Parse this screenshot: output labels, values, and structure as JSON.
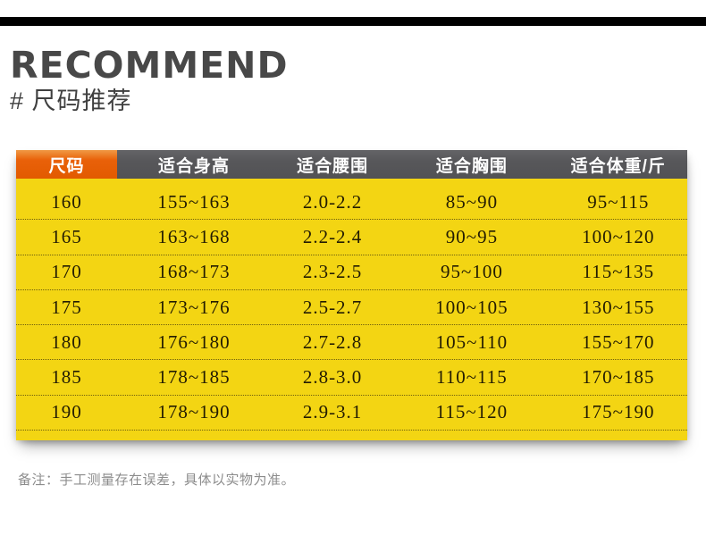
{
  "header": {
    "title": "RECOMMEND",
    "subtitle": "# 尺码推荐"
  },
  "table": {
    "columns": [
      {
        "label": "尺码",
        "highlight": true
      },
      {
        "label": "适合身高",
        "highlight": false
      },
      {
        "label": "适合腰围",
        "highlight": false
      },
      {
        "label": "适合胸围",
        "highlight": false
      },
      {
        "label": "适合体重/斤",
        "highlight": false
      }
    ],
    "rows": [
      [
        "160",
        "155~163",
        "2.0-2.2",
        "85~90",
        "95~115"
      ],
      [
        "165",
        "163~168",
        "2.2-2.4",
        "90~95",
        "100~120"
      ],
      [
        "170",
        "168~173",
        "2.3-2.5",
        "95~100",
        "115~135"
      ],
      [
        "175",
        "173~176",
        "2.5-2.7",
        "100~105",
        "130~155"
      ],
      [
        "180",
        "176~180",
        "2.7-2.8",
        "105~110",
        "155~170"
      ],
      [
        "185",
        "178~185",
        "2.8-3.0",
        "110~115",
        "170~185"
      ],
      [
        "190",
        "178~190",
        "2.9-3.1",
        "115~120",
        "175~190"
      ]
    ]
  },
  "note": "备注：手工测量存在误差，具体以实物为准。",
  "colors": {
    "top_bar": "#000000",
    "accent_orange": "#e8610d",
    "header_gray": "#58585a",
    "body_yellow": "#f3d513",
    "title_gray": "#484848",
    "note_gray": "#8c8c8c"
  }
}
